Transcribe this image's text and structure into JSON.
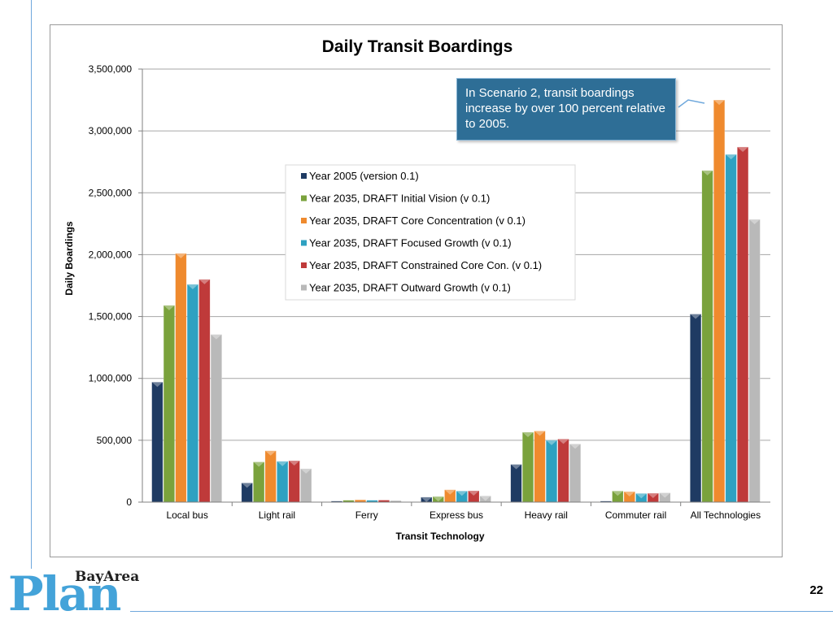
{
  "callout": {
    "text": "In Scenario 2, transit boardings increase by over 100 percent relative to 2005."
  },
  "logo": {
    "small": "BayArea",
    "big": "Plan"
  },
  "page_number": "22",
  "chart_data": {
    "type": "bar",
    "title": "Daily Transit Boardings",
    "xlabel": "Transit Technology",
    "ylabel": "Daily Boardings",
    "ylim": [
      0,
      3500000
    ],
    "yticks": [
      0,
      500000,
      1000000,
      1500000,
      2000000,
      2500000,
      3000000,
      3500000
    ],
    "ytick_labels": [
      "0",
      "500,000",
      "1,000,000",
      "1,500,000",
      "2,000,000",
      "2,500,000",
      "3,000,000",
      "3,500,000"
    ],
    "grid": true,
    "legend_position": "center",
    "categories": [
      "Local bus",
      "Light rail",
      "Ferry",
      "Express bus",
      "Heavy rail",
      "Commuter rail",
      "All Technologies"
    ],
    "series": [
      {
        "name": "Year 2005 (version 0.1)",
        "color": "#1f3b63",
        "values": [
          970000,
          155000,
          8000,
          40000,
          305000,
          8000,
          1520000
        ]
      },
      {
        "name": "Year 2035, DRAFT Initial Vision (v 0.1)",
        "color": "#7aa23c",
        "values": [
          1590000,
          325000,
          15000,
          45000,
          565000,
          90000,
          2680000
        ]
      },
      {
        "name": "Year 2035, DRAFT Core Concentration (v 0.1)",
        "color": "#ef8a2e",
        "values": [
          2010000,
          415000,
          18000,
          100000,
          575000,
          85000,
          3250000
        ]
      },
      {
        "name": "Year 2035, DRAFT Focused Growth (v 0.1)",
        "color": "#2ea1c1",
        "values": [
          1760000,
          330000,
          15000,
          90000,
          500000,
          70000,
          2810000
        ]
      },
      {
        "name": "Year 2035, DRAFT Constrained Core Con. (v 0.1)",
        "color": "#bf3a3a",
        "values": [
          1800000,
          335000,
          16000,
          92000,
          510000,
          72000,
          2870000
        ]
      },
      {
        "name": "Year 2035, DRAFT Outward Growth (v 0.1)",
        "color": "#b9b9b9",
        "values": [
          1355000,
          270000,
          12000,
          50000,
          470000,
          75000,
          2285000
        ]
      }
    ]
  }
}
